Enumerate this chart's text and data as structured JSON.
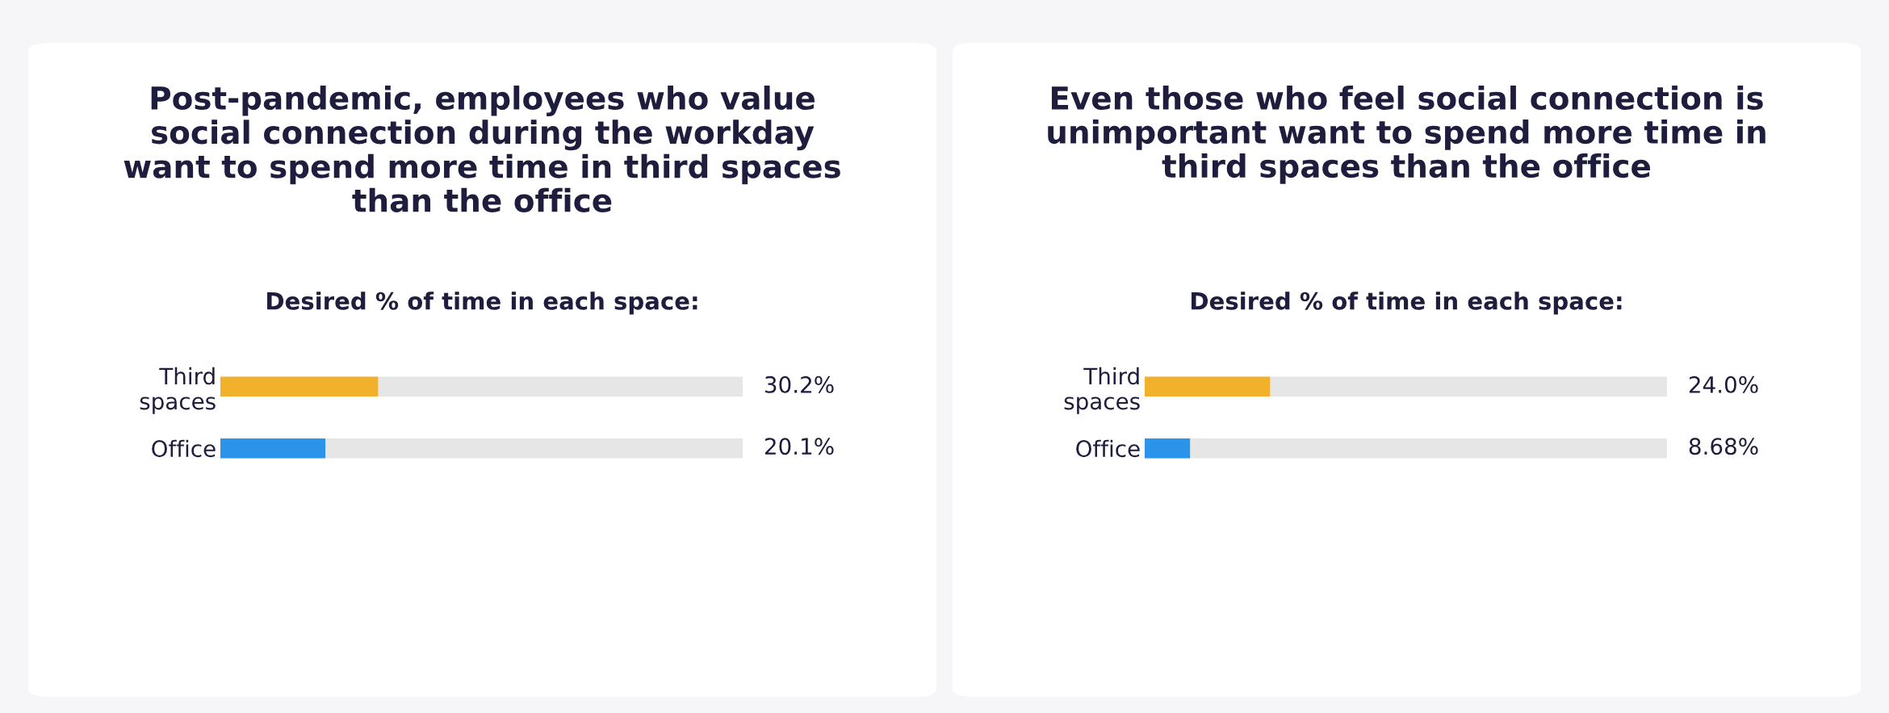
{
  "chart_data": [
    {
      "type": "bar",
      "orientation": "horizontal",
      "title": "Post-pandemic, employees who value\nsocial connection during the workday\nwant to spend more time in third spaces\nthan the office",
      "subtitle": "Desired % of time in each space:",
      "categories": [
        "Third\nspaces",
        "Office"
      ],
      "values": [
        30.2,
        20.1
      ],
      "colors": [
        "#f2b12a",
        "#2b93ea"
      ],
      "value_labels": [
        "30.2%",
        "20.1%"
      ],
      "xlim": [
        0,
        100
      ],
      "tick_labels": "y",
      "grid": false,
      "legend": false
    },
    {
      "type": "bar",
      "orientation": "horizontal",
      "title": "Even those who feel social connection is\nunimportant want to spend more time in\nthird spaces than the office",
      "subtitle": "Desired % of time in each space:",
      "categories": [
        "Third\nspaces",
        "Office"
      ],
      "values": [
        24.0,
        8.68
      ],
      "colors": [
        "#f2b12a",
        "#2b93ea"
      ],
      "value_labels": [
        "24.0%",
        "8.68%"
      ],
      "xlim": [
        0,
        100
      ],
      "tick_labels": "y",
      "grid": false,
      "legend": false
    }
  ]
}
